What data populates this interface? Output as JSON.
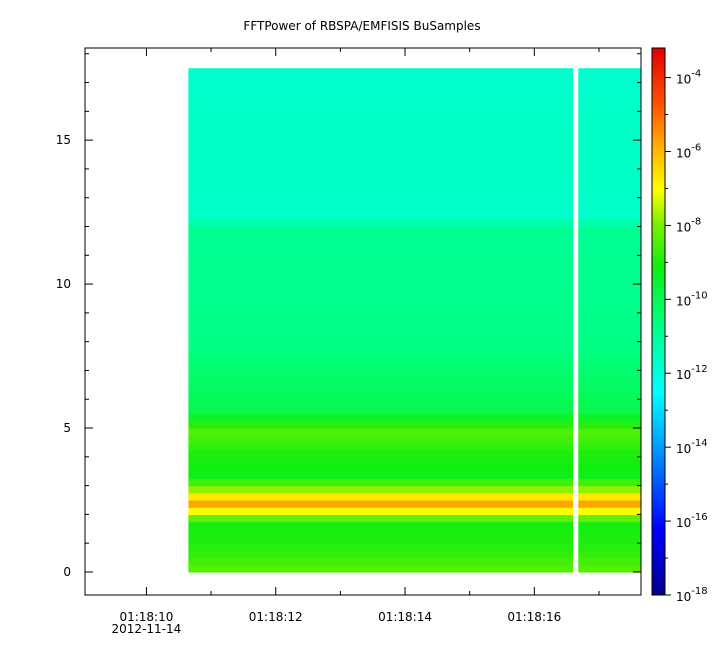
{
  "chart_data": {
    "type": "heatmap",
    "title": "FFTPower of RBSPA/EMFISIS  BuSamples",
    "xlabel": "",
    "ylabel": "",
    "x_range_seconds": [
      9.05,
      17.65
    ],
    "y_range": [
      -0.8,
      18.2
    ],
    "data_extent": {
      "x_start": "01:18:10.65",
      "x_end": "01:18:17.65",
      "y_max": 17.5,
      "y_min": 0
    },
    "data_gap": {
      "start": "01:18:16.60",
      "end": "01:18:16.68"
    },
    "x_ticks": [
      {
        "seconds": 10,
        "label": "01:18:10",
        "sublabel": "2012-11-14"
      },
      {
        "seconds": 12,
        "label": "01:18:12",
        "sublabel": ""
      },
      {
        "seconds": 14,
        "label": "01:18:14",
        "sublabel": ""
      },
      {
        "seconds": 16,
        "label": "01:18:16",
        "sublabel": ""
      }
    ],
    "x_minor_ticks": [
      11,
      13,
      15,
      17
    ],
    "y_ticks": [
      {
        "value": 0,
        "label": "0"
      },
      {
        "value": 5,
        "label": "5"
      },
      {
        "value": 10,
        "label": "10"
      },
      {
        "value": 15,
        "label": "15"
      }
    ],
    "colorbar": {
      "scale": "log",
      "range_log10": [
        -18,
        -3.2
      ],
      "tick_exponents": [
        -18,
        -16,
        -14,
        -12,
        -10,
        -8,
        -6,
        -4
      ],
      "tick_base": "10",
      "tick_labels": [
        "-18",
        "-16",
        "-14",
        "-12",
        "-10",
        "-8",
        "-6",
        "-4"
      ]
    },
    "power_profile_log10": [
      {
        "freq": 0.0,
        "power": -8.3
      },
      {
        "freq": 0.8,
        "power": -8.9
      },
      {
        "freq": 1.7,
        "power": -9.1
      },
      {
        "freq": 2.1,
        "power": -7.2
      },
      {
        "freq": 2.4,
        "power": -5.6
      },
      {
        "freq": 2.8,
        "power": -7.6
      },
      {
        "freq": 3.3,
        "power": -9.2
      },
      {
        "freq": 4.1,
        "power": -9.0
      },
      {
        "freq": 4.9,
        "power": -8.4
      },
      {
        "freq": 5.6,
        "power": -9.9
      },
      {
        "freq": 8.0,
        "power": -10.7
      },
      {
        "freq": 12.0,
        "power": -10.9
      },
      {
        "freq": 12.3,
        "power": -11.7
      },
      {
        "freq": 15.0,
        "power": -11.6
      },
      {
        "freq": 17.5,
        "power": -11.8
      }
    ]
  }
}
